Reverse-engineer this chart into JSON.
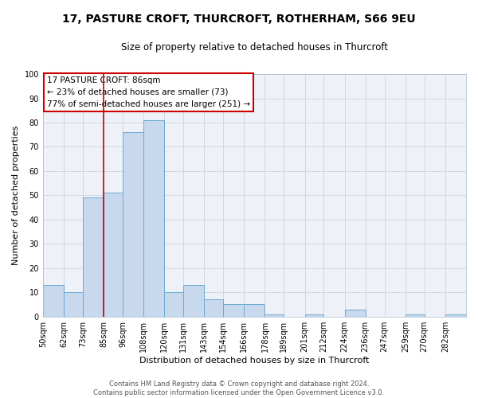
{
  "title": "17, PASTURE CROFT, THURCROFT, ROTHERHAM, S66 9EU",
  "subtitle": "Size of property relative to detached houses in Thurcroft",
  "xlabel": "Distribution of detached houses by size in Thurcroft",
  "ylabel": "Number of detached properties",
  "bar_color": "#c8d9ed",
  "bar_edge_color": "#6aaad4",
  "bg_color": "#eef2f8",
  "annotation_box_edge_color": "#cc0000",
  "vline_color": "#cc0000",
  "annotation_lines": [
    "17 PASTURE CROFT: 86sqm",
    "← 23% of detached houses are smaller (73)",
    "77% of semi-detached houses are larger (251) →"
  ],
  "property_line_x": 85,
  "categories": [
    "50sqm",
    "62sqm",
    "73sqm",
    "85sqm",
    "96sqm",
    "108sqm",
    "120sqm",
    "131sqm",
    "143sqm",
    "154sqm",
    "166sqm",
    "178sqm",
    "189sqm",
    "201sqm",
    "212sqm",
    "224sqm",
    "236sqm",
    "247sqm",
    "259sqm",
    "270sqm",
    "282sqm"
  ],
  "bin_edges": [
    50,
    62,
    73,
    85,
    96,
    108,
    120,
    131,
    143,
    154,
    166,
    178,
    189,
    201,
    212,
    224,
    236,
    247,
    259,
    270,
    282
  ],
  "values": [
    13,
    10,
    49,
    51,
    76,
    81,
    10,
    13,
    7,
    5,
    5,
    1,
    0,
    1,
    0,
    3,
    0,
    0,
    1,
    0,
    1
  ],
  "ylim": [
    0,
    100
  ],
  "yticks": [
    0,
    10,
    20,
    30,
    40,
    50,
    60,
    70,
    80,
    90,
    100
  ],
  "footer_lines": [
    "Contains HM Land Registry data © Crown copyright and database right 2024.",
    "Contains public sector information licensed under the Open Government Licence v3.0."
  ],
  "title_fontsize": 10,
  "subtitle_fontsize": 8.5,
  "axis_label_fontsize": 8,
  "tick_fontsize": 7,
  "ann_fontsize": 7.5,
  "footer_fontsize": 6
}
